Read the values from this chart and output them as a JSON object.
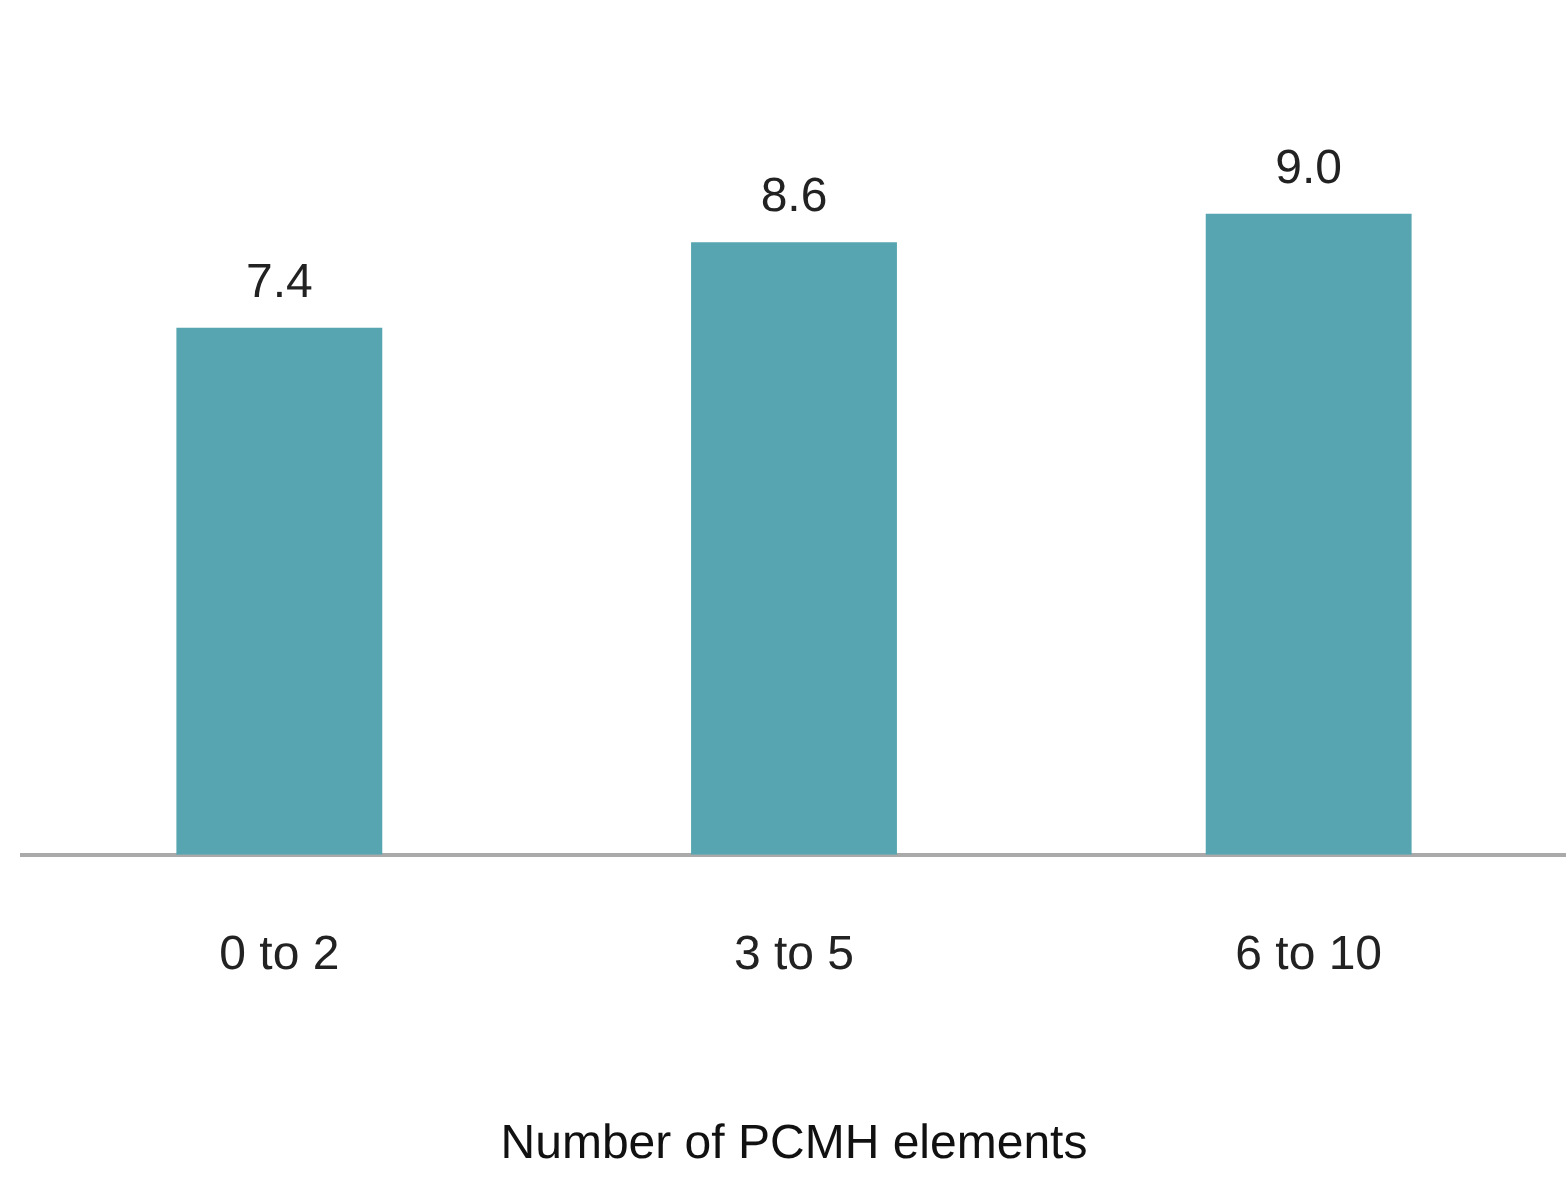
{
  "chart_data": {
    "type": "bar",
    "xlabel": "Number of PCMH elements",
    "categories": [
      "0 to 2",
      "3 to 5",
      "6 to 10"
    ],
    "values": [
      7.4,
      8.6,
      9.0
    ],
    "value_labels": [
      "7.4",
      "8.6",
      "9.0"
    ],
    "color": "#56a5b0",
    "grid": false,
    "legend": false
  }
}
